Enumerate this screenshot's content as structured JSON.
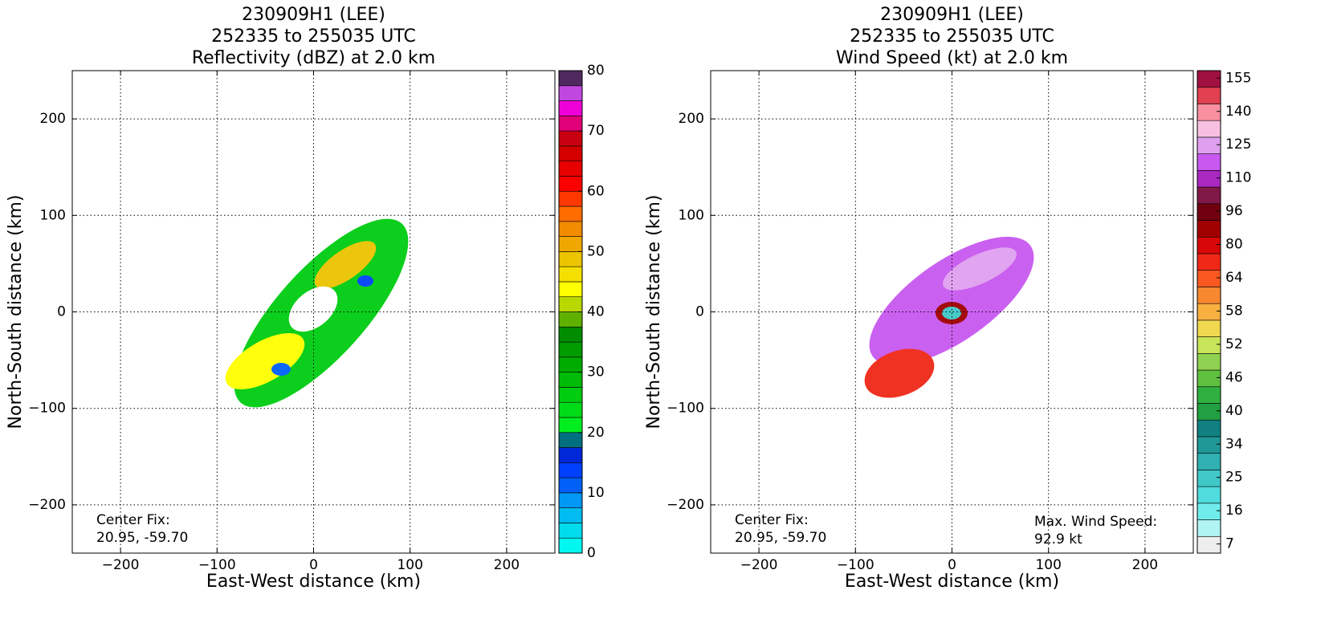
{
  "chart_data": [
    {
      "type": "radar",
      "title": [
        "230909H1 (LEE)",
        "252335 to 255035 UTC",
        "Reflectivity (dBZ) at 2.0 km"
      ],
      "xlabel": "East-West distance (km)",
      "ylabel": "North-South distance (km)",
      "xlim": [
        -250,
        250
      ],
      "ylim": [
        -250,
        250
      ],
      "xticks": [
        {
          "value": -200,
          "label": "−200"
        },
        {
          "value": -100,
          "label": "−100"
        },
        0,
        100,
        200
      ],
      "yticks": [
        {
          "value": -200,
          "label": "−200"
        },
        {
          "value": -100,
          "label": "−100"
        },
        0,
        100,
        200
      ],
      "grid": true,
      "colorbar": {
        "lim": [
          0,
          80
        ],
        "ticks": [
          0,
          10,
          20,
          30,
          40,
          50,
          60,
          70,
          80
        ],
        "colors": [
          "#00f8f0",
          "#00dcec",
          "#00bcf0",
          "#0098f4",
          "#0060f8",
          "#0040ff",
          "#0028d8",
          "#007080",
          "#00ee20",
          "#00dc18",
          "#00cc10",
          "#00bc08",
          "#00ac00",
          "#009c00",
          "#008c00",
          "#60b000",
          "#b8d800",
          "#ffff00",
          "#f4e000",
          "#ecc400",
          "#f0a800",
          "#f48c00",
          "#ff6c00",
          "#ff3800",
          "#ff0000",
          "#e80000",
          "#d40000",
          "#c80010",
          "#e00078",
          "#f000d8",
          "#c048e0",
          "#502860"
        ]
      },
      "annotations": [
        "Center Fix:",
        "20.95, -59.70"
      ]
    },
    {
      "type": "radar",
      "title": [
        "230909H1 (LEE)",
        "252335 to 255035 UTC",
        "Wind Speed (kt) at 2.0 km"
      ],
      "xlabel": "East-West distance (km)",
      "ylabel": "North-South distance (km)",
      "xlim": [
        -250,
        250
      ],
      "ylim": [
        -250,
        250
      ],
      "xticks": [
        {
          "value": -200,
          "label": "−200"
        },
        {
          "value": -100,
          "label": "−100"
        },
        0,
        100,
        200
      ],
      "yticks": [
        {
          "value": -200,
          "label": "−200"
        },
        {
          "value": -100,
          "label": "−100"
        },
        0,
        100,
        200
      ],
      "grid": true,
      "colorbar": {
        "ticks": [
          7,
          16,
          25,
          34,
          40,
          46,
          52,
          58,
          64,
          80,
          96,
          110,
          125,
          140,
          155
        ],
        "colors": [
          "#eeeeee",
          "#b0f4f4",
          "#70ecec",
          "#50dcdc",
          "#40c8c8",
          "#30b0b0",
          "#209898",
          "#108080",
          "#20a040",
          "#30b040",
          "#60c040",
          "#90d050",
          "#c8e458",
          "#f0d850",
          "#f8b040",
          "#f88830",
          "#f85820",
          "#f02818",
          "#d80808",
          "#a00000",
          "#700010",
          "#801848",
          "#a828c0",
          "#c858f0",
          "#e0a0f0",
          "#f8c0e0",
          "#f890a0",
          "#e04050",
          "#a01040"
        ]
      },
      "annotations": [
        "Center Fix:",
        "20.95, -59.70",
        "Max. Wind Speed:",
        "92.9 kt"
      ]
    }
  ]
}
